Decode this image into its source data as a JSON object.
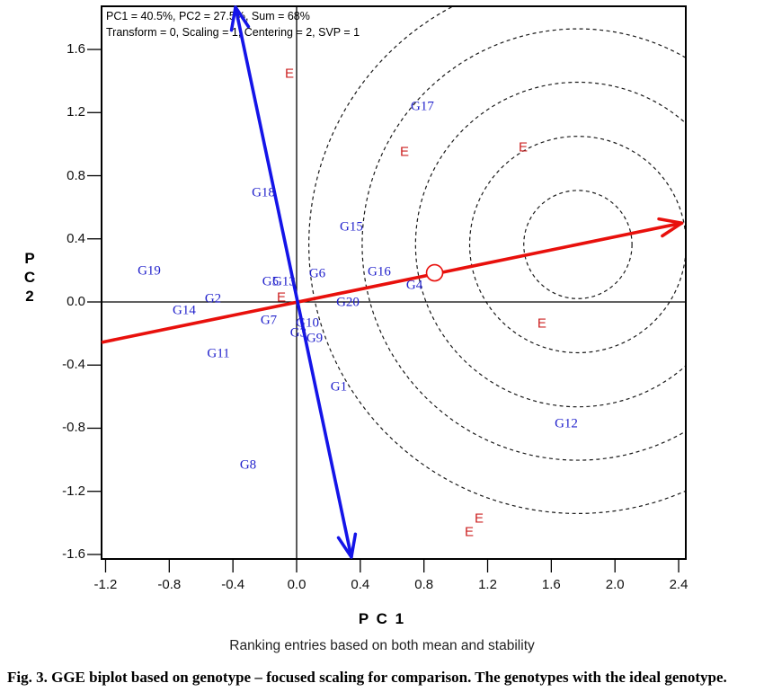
{
  "figure": {
    "stats_line1": "PC1 = 40.5%, PC2 = 27.5%, Sum = 68%",
    "stats_line2": "Transform = 0, Scaling = 1, Centering = 2, SVP = 1",
    "xlabel": "P C 1",
    "ylabel_chars": [
      "P",
      "C",
      "2"
    ],
    "subtitle": "Ranking entries based on both mean and stability",
    "caption": "Fig. 3. GGE biplot based on genotype – focused scaling for comparison. The genotypes with the ideal genotype."
  },
  "chart_data": {
    "type": "scatter",
    "title": "Ranking entries based on both mean and stability",
    "xlabel": "P C 1",
    "ylabel": "P C 2",
    "xlim": [
      -1.225,
      2.445
    ],
    "ylim": [
      -1.63,
      1.87
    ],
    "x_ticks": [
      "-1.2",
      "-0.8",
      "-0.4",
      "0.0",
      "0.4",
      "0.8",
      "1.2",
      "1.6",
      "2.0",
      "2.4"
    ],
    "y_ticks": [
      "1.6",
      "1.2",
      "0.8",
      "0.4",
      "0.0",
      "-0.4",
      "-0.8",
      "-1.2",
      "-1.6"
    ],
    "grid": false,
    "colors": {
      "genotype": "#2222cc",
      "environment": "#cc2222",
      "aec_red": "#e8100c",
      "aec_blue": "#1414e8",
      "axes": "#000000",
      "rings": "#1a1a1a"
    },
    "genotypes": [
      {
        "label": "G19",
        "x": -0.926,
        "y": 0.194
      },
      {
        "label": "G2",
        "x": -0.525,
        "y": 0.017
      },
      {
        "label": "G14",
        "x": -0.706,
        "y": -0.057
      },
      {
        "label": "G11",
        "x": -0.491,
        "y": -0.33
      },
      {
        "label": "G18",
        "x": -0.209,
        "y": 0.689
      },
      {
        "label": "G5",
        "x": -0.164,
        "y": 0.125
      },
      {
        "label": "G13",
        "x": -0.079,
        "y": 0.125
      },
      {
        "label": "G6",
        "x": 0.13,
        "y": 0.177
      },
      {
        "label": "G7",
        "x": -0.175,
        "y": -0.12
      },
      {
        "label": "G10",
        "x": 0.068,
        "y": -0.137
      },
      {
        "label": "G3",
        "x": 0.011,
        "y": -0.199
      },
      {
        "label": "G9",
        "x": 0.113,
        "y": -0.233
      },
      {
        "label": "G20",
        "x": 0.322,
        "y": -0.006
      },
      {
        "label": "G15",
        "x": 0.344,
        "y": 0.473
      },
      {
        "label": "G16",
        "x": 0.519,
        "y": 0.188
      },
      {
        "label": "G4",
        "x": 0.74,
        "y": 0.103
      },
      {
        "label": "G1",
        "x": 0.265,
        "y": -0.541
      },
      {
        "label": "G12",
        "x": 1.694,
        "y": -0.774
      },
      {
        "label": "G8",
        "x": -0.305,
        "y": -1.036
      },
      {
        "label": "G17",
        "x": 0.79,
        "y": 1.236
      }
    ],
    "environments": [
      {
        "label": "E",
        "x": -0.045,
        "y": 1.446
      },
      {
        "label": "E",
        "x": 0.678,
        "y": 0.951
      },
      {
        "label": "E",
        "x": 1.423,
        "y": 0.979
      },
      {
        "label": "E",
        "x": -0.096,
        "y": 0.028
      },
      {
        "label": "E",
        "x": 1.541,
        "y": -0.137
      },
      {
        "label": "E",
        "x": 1.146,
        "y": -1.372
      },
      {
        "label": "E",
        "x": 1.084,
        "y": -1.458
      }
    ],
    "aec_abscissa": {
      "from": [
        -1.225,
        -0.256
      ],
      "tip": [
        2.42,
        0.5
      ]
    },
    "aec_ordinate": {
      "top": [
        -0.384,
        1.868
      ],
      "bottom": [
        0.344,
        -1.617
      ]
    },
    "ideal_marker": {
      "x": 0.867,
      "y": 0.185,
      "radius_px": 9
    },
    "rings": {
      "cx": 1.767,
      "cy": 0.364,
      "radii_units": [
        0.34,
        0.68,
        1.02,
        1.355,
        1.69
      ]
    }
  }
}
